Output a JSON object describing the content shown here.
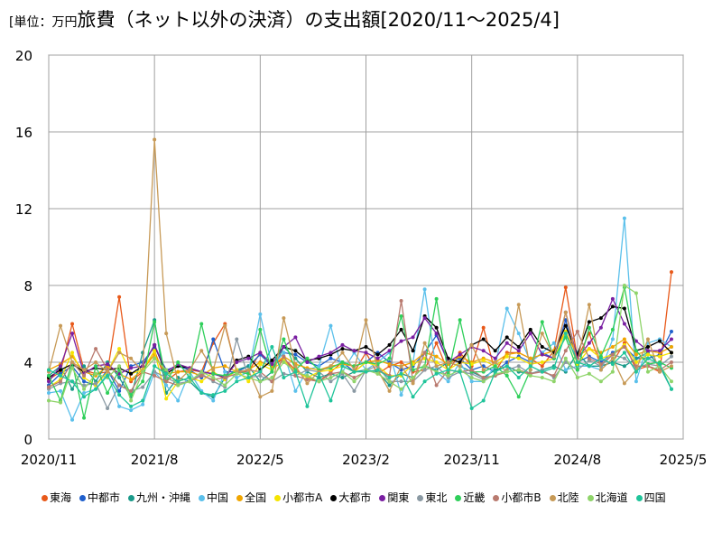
{
  "header": {
    "unit": "[単位：万円",
    "title": "旅費（ネット以外の決済）の支出額[2020/11～2025/4]"
  },
  "chart_data": {
    "type": "line",
    "title": "旅費（ネット以外の決済）の支出額[2020/11～2025/4]",
    "ylim": [
      0,
      20
    ],
    "yticks": [
      0,
      4,
      8,
      12,
      16,
      20
    ],
    "xticks": [
      "2020/11",
      "2021/8",
      "2022/5",
      "2023/2",
      "2023/11",
      "2024/8",
      "2025/5"
    ],
    "grid": true,
    "legend_position": "bottom",
    "x": [
      "2020/11",
      "2020/12",
      "2021/1",
      "2021/2",
      "2021/3",
      "2021/4",
      "2021/5",
      "2021/6",
      "2021/7",
      "2021/8",
      "2021/9",
      "2021/10",
      "2021/11",
      "2021/12",
      "2022/1",
      "2022/2",
      "2022/3",
      "2022/4",
      "2022/5",
      "2022/6",
      "2022/7",
      "2022/8",
      "2022/9",
      "2022/10",
      "2022/11",
      "2022/12",
      "2023/1",
      "2023/2",
      "2023/3",
      "2023/4",
      "2023/5",
      "2023/6",
      "2023/7",
      "2023/8",
      "2023/9",
      "2023/10",
      "2023/11",
      "2023/12",
      "2024/1",
      "2024/2",
      "2024/3",
      "2024/4",
      "2024/5",
      "2024/6",
      "2024/7",
      "2024/8",
      "2024/9",
      "2024/10",
      "2024/11",
      "2024/12",
      "2025/1",
      "2025/2",
      "2025/3",
      "2025/4"
    ],
    "series": [
      {
        "name": "東海",
        "color": "#e8591a",
        "values": [
          3.1,
          3.5,
          6.0,
          3.6,
          3.4,
          3.5,
          7.4,
          3.0,
          3.5,
          4.6,
          3.0,
          3.5,
          3.6,
          3.5,
          5.0,
          6.0,
          3.5,
          3.5,
          4.5,
          3.8,
          4.2,
          3.6,
          3.2,
          3.0,
          3.5,
          4.0,
          3.5,
          4.5,
          3.4,
          3.8,
          4.0,
          3.5,
          3.6,
          5.0,
          3.5,
          4.5,
          3.8,
          5.8,
          3.5,
          4.5,
          4.5,
          4.2,
          3.8,
          4.6,
          7.9,
          4.2,
          5.5,
          3.8,
          4.0,
          5.0,
          3.6,
          3.8,
          3.5,
          8.7
        ]
      },
      {
        "name": "中都市",
        "color": "#1f5fcc",
        "values": [
          2.8,
          3.4,
          3.8,
          3.0,
          2.8,
          3.6,
          2.5,
          3.8,
          4.0,
          4.8,
          3.6,
          3.8,
          3.6,
          3.2,
          5.2,
          3.5,
          3.5,
          3.8,
          4.4,
          3.8,
          4.5,
          4.4,
          4.0,
          3.8,
          4.2,
          4.0,
          3.5,
          4.0,
          4.5,
          4.0,
          3.6,
          3.8,
          4.5,
          5.4,
          4.0,
          4.2,
          3.6,
          3.8,
          3.5,
          4.0,
          4.3,
          4.0,
          4.5,
          4.2,
          6.2,
          4.0,
          4.3,
          4.0,
          4.5,
          4.8,
          4.2,
          4.2,
          4.4,
          5.6
        ]
      },
      {
        "name": "九州・沖縄",
        "color": "#1a9a8a",
        "values": [
          3.3,
          3.8,
          2.6,
          3.8,
          3.0,
          4.0,
          3.2,
          2.2,
          4.5,
          6.2,
          2.4,
          3.2,
          3.0,
          2.4,
          2.2,
          3.2,
          3.6,
          3.8,
          3.0,
          3.5,
          4.8,
          4.2,
          3.5,
          3.2,
          3.4,
          3.2,
          3.5,
          3.6,
          3.5,
          2.8,
          3.4,
          3.2,
          3.8,
          3.6,
          4.0,
          3.8,
          3.5,
          3.2,
          3.6,
          3.8,
          3.5,
          3.4,
          3.6,
          3.8,
          3.5,
          4.5,
          3.8,
          3.8,
          4.0,
          3.8,
          4.2,
          4.5,
          3.8,
          2.6
        ]
      },
      {
        "name": "中国",
        "color": "#5bc0eb",
        "values": [
          2.4,
          2.5,
          1.0,
          2.4,
          2.6,
          3.4,
          1.7,
          1.5,
          1.8,
          3.5,
          2.8,
          2.0,
          3.5,
          2.5,
          2.0,
          3.5,
          3.2,
          3.5,
          6.5,
          3.8,
          4.5,
          2.5,
          3.6,
          3.8,
          5.9,
          3.5,
          4.5,
          3.6,
          4.0,
          4.5,
          2.3,
          4.0,
          7.8,
          3.5,
          3.0,
          4.0,
          3.0,
          3.0,
          3.8,
          6.8,
          5.5,
          4.0,
          4.5,
          5.0,
          3.6,
          3.8,
          3.8,
          3.6,
          5.2,
          11.5,
          3.0,
          5.0,
          5.2,
          4.8
        ]
      },
      {
        "name": "全国",
        "color": "#f0a500",
        "values": [
          3.6,
          3.9,
          4.3,
          3.5,
          3.3,
          3.8,
          3.4,
          3.1,
          3.6,
          4.4,
          3.4,
          3.5,
          3.5,
          3.3,
          3.7,
          3.8,
          3.5,
          3.6,
          4.0,
          3.8,
          4.3,
          3.9,
          3.7,
          3.6,
          3.8,
          3.9,
          3.8,
          4.0,
          4.1,
          3.9,
          3.8,
          4.0,
          4.5,
          4.3,
          3.9,
          4.3,
          4.0,
          4.2,
          4.0,
          4.4,
          4.5,
          4.2,
          4.4,
          4.6,
          5.6,
          4.3,
          4.7,
          4.5,
          4.8,
          5.2,
          4.4,
          4.6,
          4.5,
          4.8
        ]
      },
      {
        "name": "小都市A",
        "color": "#f5e400",
        "values": [
          2.7,
          3.1,
          4.5,
          3.2,
          2.8,
          3.5,
          4.7,
          3.4,
          3.6,
          4.6,
          2.1,
          3.0,
          3.2,
          3.0,
          3.5,
          3.1,
          3.6,
          3.0,
          3.9,
          3.6,
          4.1,
          3.5,
          3.2,
          3.5,
          3.6,
          3.8,
          3.5,
          4.0,
          3.8,
          3.3,
          3.3,
          3.9,
          4.2,
          4.0,
          3.6,
          4.0,
          3.9,
          4.1,
          3.8,
          4.3,
          4.2,
          3.9,
          4.0,
          4.2,
          5.6,
          3.9,
          4.7,
          4.2,
          4.4,
          4.9,
          4.0,
          4.4,
          4.3,
          4.5
        ]
      },
      {
        "name": "大都市",
        "color": "#000000",
        "values": [
          3.2,
          3.6,
          3.9,
          3.5,
          3.7,
          3.6,
          3.7,
          3.4,
          3.8,
          4.9,
          3.4,
          3.8,
          3.7,
          3.5,
          3.4,
          3.2,
          4.1,
          4.3,
          3.6,
          4.1,
          4.8,
          4.6,
          4.1,
          4.2,
          4.4,
          4.7,
          4.6,
          4.8,
          4.4,
          4.9,
          5.7,
          4.6,
          6.4,
          5.8,
          4.2,
          4.0,
          4.9,
          5.2,
          4.6,
          5.3,
          4.8,
          5.7,
          4.8,
          4.5,
          5.9,
          4.4,
          6.1,
          6.3,
          6.9,
          6.8,
          4.6,
          4.8,
          5.1,
          4.5
        ]
      },
      {
        "name": "関東",
        "color": "#7a1fa2",
        "values": [
          3.0,
          3.8,
          5.5,
          3.4,
          3.8,
          3.9,
          3.4,
          3.7,
          3.8,
          4.9,
          3.5,
          3.9,
          3.7,
          3.5,
          3.4,
          3.2,
          4.0,
          4.2,
          4.5,
          3.9,
          4.8,
          5.3,
          4.0,
          4.3,
          4.5,
          4.9,
          4.6,
          4.5,
          4.2,
          4.6,
          5.1,
          5.3,
          6.3,
          5.5,
          4.0,
          4.4,
          4.8,
          4.6,
          4.2,
          5.0,
          4.6,
          5.5,
          4.4,
          4.2,
          6.6,
          4.2,
          5.0,
          5.8,
          7.3,
          6.0,
          5.1,
          4.6,
          4.6,
          5.2
        ]
      },
      {
        "name": "東北",
        "color": "#8a99a3",
        "values": [
          2.6,
          2.9,
          3.0,
          2.8,
          2.9,
          1.6,
          2.8,
          2.5,
          2.7,
          3.5,
          3.2,
          2.9,
          3.0,
          3.4,
          3.0,
          2.7,
          5.2,
          3.2,
          3.3,
          3.0,
          3.4,
          3.3,
          3.6,
          3.5,
          3.0,
          3.4,
          2.5,
          3.6,
          3.8,
          3.0,
          3.0,
          3.0,
          3.6,
          3.8,
          3.2,
          3.5,
          3.4,
          3.1,
          3.3,
          3.6,
          3.8,
          3.4,
          3.6,
          3.2,
          4.0,
          3.6,
          4.1,
          3.8,
          4.4,
          4.2,
          3.7,
          3.9,
          3.8,
          4.3
        ]
      },
      {
        "name": "近畿",
        "color": "#2fcf5a",
        "values": [
          3.3,
          2.0,
          4.0,
          1.1,
          3.8,
          2.4,
          3.6,
          2.3,
          3.0,
          6.1,
          3.0,
          4.0,
          3.2,
          6.0,
          3.4,
          3.3,
          3.5,
          3.4,
          5.7,
          3.5,
          5.2,
          3.6,
          4.2,
          3.6,
          3.7,
          4.0,
          3.8,
          4.0,
          3.9,
          4.2,
          6.4,
          3.6,
          3.8,
          7.3,
          3.4,
          6.2,
          3.5,
          3.5,
          3.8,
          3.3,
          2.2,
          3.6,
          6.1,
          4.2,
          5.3,
          3.6,
          5.8,
          4.3,
          5.7,
          7.9,
          4.6,
          3.9,
          4.0,
          3.7
        ]
      },
      {
        "name": "小都市B",
        "color": "#b97a6f",
        "values": [
          2.7,
          3.0,
          4.0,
          3.3,
          4.7,
          3.6,
          2.8,
          2.5,
          3.5,
          3.3,
          3.0,
          2.8,
          3.0,
          3.3,
          3.1,
          3.2,
          3.4,
          3.6,
          3.5,
          3.0,
          4.3,
          3.3,
          3.1,
          3.0,
          3.4,
          3.5,
          3.2,
          3.5,
          3.6,
          3.3,
          7.2,
          3.0,
          4.5,
          2.8,
          3.6,
          3.5,
          3.6,
          3.2,
          3.3,
          3.5,
          3.6,
          3.4,
          3.5,
          3.3,
          4.6,
          5.6,
          4.2,
          3.9,
          4.4,
          4.8,
          3.8,
          3.8,
          3.6,
          4.0
        ]
      },
      {
        "name": "北陸",
        "color": "#c79a57",
        "values": [
          3.5,
          5.9,
          4.0,
          3.6,
          4.0,
          3.5,
          4.5,
          4.2,
          3.5,
          15.6,
          5.5,
          3.0,
          3.6,
          4.6,
          3.6,
          5.9,
          3.5,
          3.6,
          2.2,
          2.5,
          6.3,
          3.8,
          2.9,
          3.5,
          3.8,
          4.5,
          3.6,
          6.2,
          3.6,
          2.5,
          3.8,
          2.9,
          5.0,
          3.8,
          4.0,
          3.8,
          4.9,
          3.6,
          4.0,
          3.5,
          7.0,
          3.6,
          5.5,
          4.3,
          6.6,
          4.0,
          7.0,
          3.6,
          4.2,
          2.9,
          3.6,
          5.2,
          3.5,
          3.8
        ]
      },
      {
        "name": "北海道",
        "color": "#8fd46a",
        "values": [
          2.0,
          1.9,
          3.7,
          2.6,
          3.4,
          3.2,
          3.8,
          2.0,
          3.5,
          4.2,
          3.6,
          2.8,
          3.0,
          3.5,
          3.2,
          2.8,
          3.4,
          3.2,
          3.0,
          3.2,
          4.0,
          3.5,
          3.3,
          3.0,
          3.2,
          3.5,
          3.0,
          3.6,
          3.4,
          3.0,
          2.6,
          3.2,
          3.8,
          3.5,
          3.3,
          3.6,
          3.2,
          3.0,
          3.4,
          3.5,
          3.6,
          3.3,
          3.2,
          3.0,
          4.2,
          3.2,
          3.4,
          3.0,
          3.5,
          8.0,
          7.6,
          3.5,
          3.8,
          3.0
        ]
      },
      {
        "name": "四国",
        "color": "#1fc49a",
        "values": [
          3.6,
          3.3,
          3.0,
          2.2,
          2.6,
          3.3,
          2.3,
          1.7,
          2.0,
          3.8,
          3.4,
          3.0,
          3.2,
          2.4,
          2.3,
          2.5,
          3.0,
          3.2,
          3.5,
          4.8,
          3.2,
          3.5,
          1.7,
          3.4,
          2.0,
          3.8,
          3.5,
          3.5,
          3.6,
          3.2,
          3.4,
          2.2,
          3.0,
          3.4,
          3.6,
          3.5,
          1.6,
          2.0,
          3.5,
          3.8,
          3.2,
          3.8,
          3.5,
          3.7,
          5.5,
          4.0,
          3.8,
          4.2,
          3.9,
          4.5,
          3.5,
          4.2,
          3.9,
          2.6
        ]
      }
    ]
  }
}
